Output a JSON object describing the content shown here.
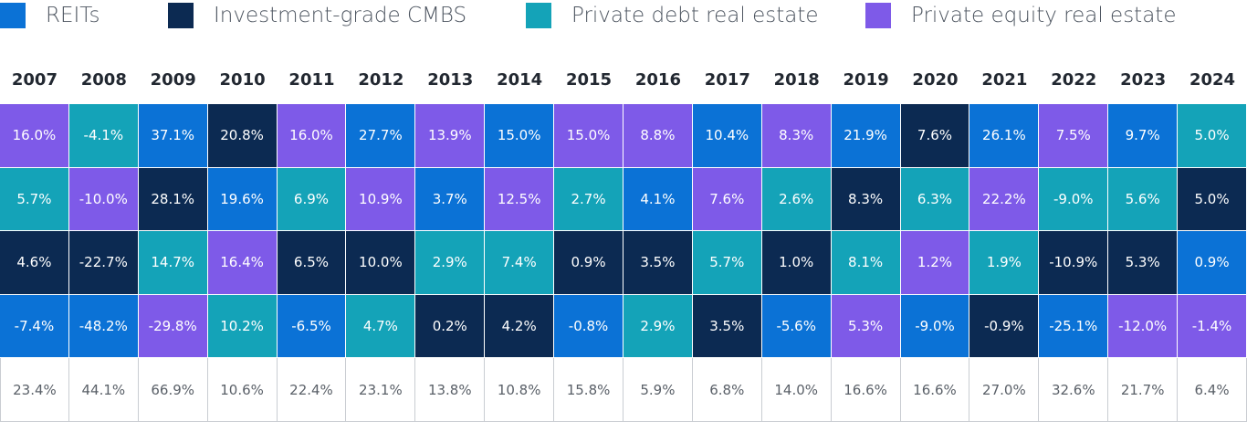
{
  "chart_data": {
    "type": "table",
    "legend": [
      {
        "key": "reits",
        "label": "REITs",
        "color": "#0b72d6"
      },
      {
        "key": "cmbs",
        "label": "Investment-grade CMBS",
        "color": "#0c2a52"
      },
      {
        "key": "pdre",
        "label": "Private debt real estate",
        "color": "#14a3b8"
      },
      {
        "key": "pere",
        "label": "Private equity real estate",
        "color": "#7e5ae8"
      }
    ],
    "years": [
      "2007",
      "2008",
      "2009",
      "2010",
      "2011",
      "2012",
      "2013",
      "2014",
      "2015",
      "2016",
      "2017",
      "2018",
      "2019",
      "2020",
      "2021",
      "2022",
      "2023",
      "2024"
    ],
    "rank_columns": [
      [
        {
          "asset": "pere",
          "value": "16.0%"
        },
        {
          "asset": "pdre",
          "value": "5.7%"
        },
        {
          "asset": "cmbs",
          "value": "4.6%"
        },
        {
          "asset": "reits",
          "value": "-7.4%"
        }
      ],
      [
        {
          "asset": "pdre",
          "value": "-4.1%"
        },
        {
          "asset": "pere",
          "value": "-10.0%"
        },
        {
          "asset": "cmbs",
          "value": "-22.7%"
        },
        {
          "asset": "reits",
          "value": "-48.2%"
        }
      ],
      [
        {
          "asset": "reits",
          "value": "37.1%"
        },
        {
          "asset": "cmbs",
          "value": "28.1%"
        },
        {
          "asset": "pdre",
          "value": "14.7%"
        },
        {
          "asset": "pere",
          "value": "-29.8%"
        }
      ],
      [
        {
          "asset": "cmbs",
          "value": "20.8%"
        },
        {
          "asset": "reits",
          "value": "19.6%"
        },
        {
          "asset": "pere",
          "value": "16.4%"
        },
        {
          "asset": "pdre",
          "value": "10.2%"
        }
      ],
      [
        {
          "asset": "pere",
          "value": "16.0%"
        },
        {
          "asset": "pdre",
          "value": "6.9%"
        },
        {
          "asset": "cmbs",
          "value": "6.5%"
        },
        {
          "asset": "reits",
          "value": "-6.5%"
        }
      ],
      [
        {
          "asset": "reits",
          "value": "27.7%"
        },
        {
          "asset": "pere",
          "value": "10.9%"
        },
        {
          "asset": "cmbs",
          "value": "10.0%"
        },
        {
          "asset": "pdre",
          "value": "4.7%"
        }
      ],
      [
        {
          "asset": "pere",
          "value": "13.9%"
        },
        {
          "asset": "reits",
          "value": "3.7%"
        },
        {
          "asset": "pdre",
          "value": "2.9%"
        },
        {
          "asset": "cmbs",
          "value": "0.2%"
        }
      ],
      [
        {
          "asset": "reits",
          "value": "15.0%"
        },
        {
          "asset": "pere",
          "value": "12.5%"
        },
        {
          "asset": "pdre",
          "value": "7.4%"
        },
        {
          "asset": "cmbs",
          "value": "4.2%"
        }
      ],
      [
        {
          "asset": "pere",
          "value": "15.0%"
        },
        {
          "asset": "pdre",
          "value": "2.7%"
        },
        {
          "asset": "cmbs",
          "value": "0.9%"
        },
        {
          "asset": "reits",
          "value": "-0.8%"
        }
      ],
      [
        {
          "asset": "pere",
          "value": "8.8%"
        },
        {
          "asset": "reits",
          "value": "4.1%"
        },
        {
          "asset": "cmbs",
          "value": "3.5%"
        },
        {
          "asset": "pdre",
          "value": "2.9%"
        }
      ],
      [
        {
          "asset": "reits",
          "value": "10.4%"
        },
        {
          "asset": "pere",
          "value": "7.6%"
        },
        {
          "asset": "pdre",
          "value": "5.7%"
        },
        {
          "asset": "cmbs",
          "value": "3.5%"
        }
      ],
      [
        {
          "asset": "pere",
          "value": "8.3%"
        },
        {
          "asset": "pdre",
          "value": "2.6%"
        },
        {
          "asset": "cmbs",
          "value": "1.0%"
        },
        {
          "asset": "reits",
          "value": "-5.6%"
        }
      ],
      [
        {
          "asset": "reits",
          "value": "21.9%"
        },
        {
          "asset": "cmbs",
          "value": "8.3%"
        },
        {
          "asset": "pdre",
          "value": "8.1%"
        },
        {
          "asset": "pere",
          "value": "5.3%"
        }
      ],
      [
        {
          "asset": "cmbs",
          "value": "7.6%"
        },
        {
          "asset": "pdre",
          "value": "6.3%"
        },
        {
          "asset": "pere",
          "value": "1.2%"
        },
        {
          "asset": "reits",
          "value": "-9.0%"
        }
      ],
      [
        {
          "asset": "reits",
          "value": "26.1%"
        },
        {
          "asset": "pere",
          "value": "22.2%"
        },
        {
          "asset": "pdre",
          "value": "1.9%"
        },
        {
          "asset": "cmbs",
          "value": "-0.9%"
        }
      ],
      [
        {
          "asset": "pere",
          "value": "7.5%"
        },
        {
          "asset": "pdre",
          "value": "-9.0%"
        },
        {
          "asset": "cmbs",
          "value": "-10.9%"
        },
        {
          "asset": "reits",
          "value": "-25.1%"
        }
      ],
      [
        {
          "asset": "reits",
          "value": "9.7%"
        },
        {
          "asset": "pdre",
          "value": "5.6%"
        },
        {
          "asset": "cmbs",
          "value": "5.3%"
        },
        {
          "asset": "pere",
          "value": "-12.0%"
        }
      ],
      [
        {
          "asset": "pdre",
          "value": "5.0%"
        },
        {
          "asset": "cmbs",
          "value": "5.0%"
        },
        {
          "asset": "reits",
          "value": "0.9%"
        },
        {
          "asset": "pere",
          "value": "-1.4%"
        }
      ]
    ],
    "totals": [
      "23.4%",
      "44.1%",
      "66.9%",
      "10.6%",
      "22.4%",
      "23.1%",
      "13.8%",
      "10.8%",
      "15.8%",
      "5.9%",
      "6.8%",
      "14.0%",
      "16.6%",
      "16.6%",
      "27.0%",
      "32.6%",
      "21.7%",
      "6.4%"
    ]
  }
}
